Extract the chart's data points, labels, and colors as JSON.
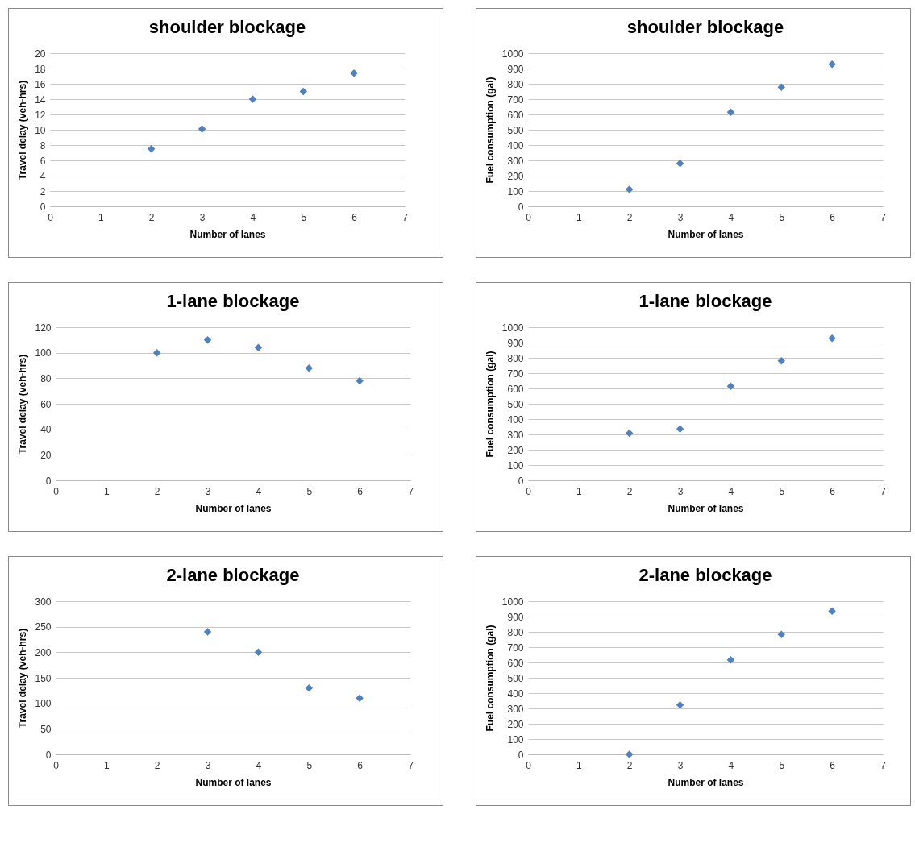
{
  "chart_data": [
    {
      "type": "scatter",
      "title": "shoulder blockage",
      "xlabel": "Number of lanes",
      "ylabel": "Travel delay (veh-hrs)",
      "x": [
        2,
        3,
        4,
        5,
        6
      ],
      "series": [
        {
          "color": "#4f81bd",
          "values": [
            7.5,
            10.1,
            14,
            15,
            17.4
          ]
        }
      ],
      "xlim": [
        0,
        7
      ],
      "xticks": [
        0,
        1,
        2,
        3,
        4,
        5,
        6,
        7
      ],
      "ylim": [
        0,
        20
      ],
      "yticks": [
        0,
        2,
        4,
        6,
        8,
        10,
        12,
        14,
        16,
        18,
        20
      ],
      "grid": "y",
      "marker": "diamond"
    },
    {
      "type": "scatter",
      "title": "shoulder blockage",
      "xlabel": "Number of lanes",
      "ylabel": "Fuel consumption (gal)",
      "x": [
        2,
        3,
        4,
        5,
        6
      ],
      "series": [
        {
          "color": "#4f81bd",
          "values": [
            110,
            280,
            615,
            778,
            928
          ]
        }
      ],
      "xlim": [
        0,
        7
      ],
      "xticks": [
        0,
        1,
        2,
        3,
        4,
        5,
        6,
        7
      ],
      "ylim": [
        0,
        1000
      ],
      "yticks": [
        0,
        100,
        200,
        300,
        400,
        500,
        600,
        700,
        800,
        900,
        1000
      ],
      "grid": "y",
      "marker": "diamond"
    },
    {
      "type": "scatter",
      "title": "1-lane blockage",
      "xlabel": "Number of lanes",
      "ylabel": "Travel delay (veh-hrs)",
      "x": [
        2,
        3,
        4,
        5,
        6
      ],
      "series": [
        {
          "color": "#4f81bd",
          "values": [
            100,
            110,
            104,
            88,
            78
          ]
        }
      ],
      "xlim": [
        0,
        7
      ],
      "xticks": [
        0,
        1,
        2,
        3,
        4,
        5,
        6,
        7
      ],
      "ylim": [
        0,
        120
      ],
      "yticks": [
        0,
        20,
        40,
        60,
        80,
        100,
        120
      ],
      "grid": "y",
      "marker": "diamond"
    },
    {
      "type": "scatter",
      "title": "1-lane blockage",
      "xlabel": "Number of lanes",
      "ylabel": "Fuel consumption (gal)",
      "x": [
        2,
        3,
        4,
        5,
        6
      ],
      "series": [
        {
          "color": "#4f81bd",
          "values": [
            308,
            335,
            615,
            780,
            928
          ]
        }
      ],
      "xlim": [
        0,
        7
      ],
      "xticks": [
        0,
        1,
        2,
        3,
        4,
        5,
        6,
        7
      ],
      "ylim": [
        0,
        1000
      ],
      "yticks": [
        0,
        100,
        200,
        300,
        400,
        500,
        600,
        700,
        800,
        900,
        1000
      ],
      "grid": "y",
      "marker": "diamond"
    },
    {
      "type": "scatter",
      "title": "2-lane blockage",
      "xlabel": "Number of lanes",
      "ylabel": "Travel delay (veh-hrs)",
      "x": [
        3,
        4,
        5,
        6
      ],
      "series": [
        {
          "color": "#4f81bd",
          "values": [
            240,
            200,
            130,
            110
          ]
        }
      ],
      "xlim": [
        0,
        7
      ],
      "xticks": [
        0,
        1,
        2,
        3,
        4,
        5,
        6,
        7
      ],
      "ylim": [
        0,
        300
      ],
      "yticks": [
        0,
        50,
        100,
        150,
        200,
        250,
        300
      ],
      "grid": "y",
      "marker": "diamond"
    },
    {
      "type": "scatter",
      "title": "2-lane blockage",
      "xlabel": "Number of lanes",
      "ylabel": "Fuel consumption (gal)",
      "x": [
        2,
        3,
        4,
        5,
        6
      ],
      "series": [
        {
          "color": "#4f81bd",
          "values": [
            0,
            323,
            617,
            783,
            935
          ]
        }
      ],
      "xlim": [
        0,
        7
      ],
      "xticks": [
        0,
        1,
        2,
        3,
        4,
        5,
        6,
        7
      ],
      "ylim": [
        0,
        1000
      ],
      "yticks": [
        0,
        100,
        200,
        300,
        400,
        500,
        600,
        700,
        800,
        900,
        1000
      ],
      "grid": "y",
      "marker": "diamond"
    }
  ]
}
